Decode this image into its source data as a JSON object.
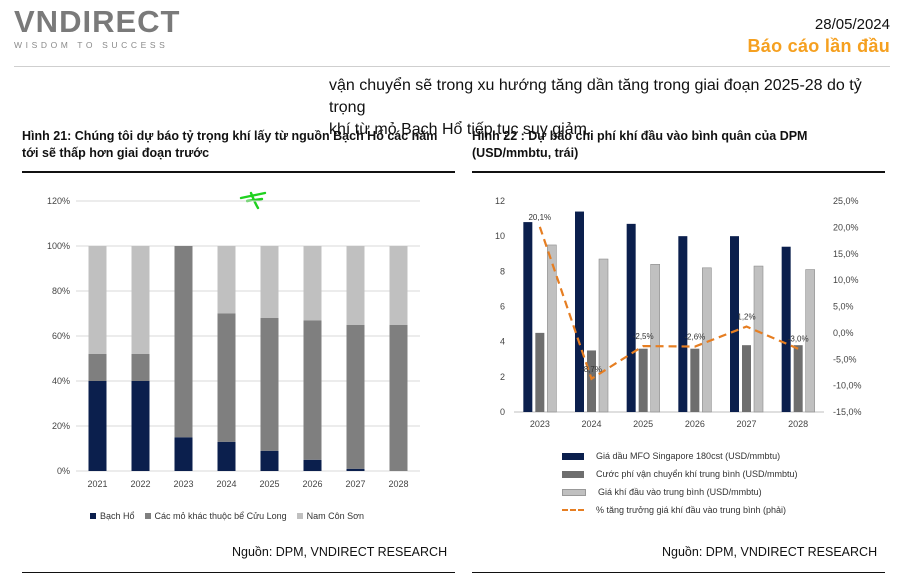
{
  "header": {
    "brand": "VNDIRECT",
    "tagline": "WISDOM TO SUCCESS",
    "date": "28/05/2024",
    "report_type": "Báo cáo lần đầu"
  },
  "body_text": {
    "line1": "vận chuyển sẽ trong xu hướng tăng dần tăng trong giai đoạn 2025-28 do tỷ trọng",
    "line2": "khí từ mỏ Bạch Hổ tiếp tục suy giảm."
  },
  "figure21": {
    "title_line1": "Hình 21: Chúng tôi dự báo tỷ trọng khí lấy từ nguồn Bạch Hổ các năm",
    "title_line2": "tới sẽ thấp hơn giai đoạn trước",
    "source": "Nguồn: DPM, VNDIRECT RESEARCH"
  },
  "figure22": {
    "title_line1": "Hình 22 : Dự báo chi phí khí đầu vào bình quân của DPM",
    "title_line2": "(USD/mmbtu, trái)",
    "source": "Nguồn: DPM, VNDIRECT RESEARCH"
  },
  "chart_data": [
    {
      "type": "bar",
      "stacked": true,
      "title": "Hình 21: Chúng tôi dự báo tỷ trọng khí lấy từ nguồn Bạch Hổ các năm tới sẽ thấp hơn giai đoạn trước",
      "categories": [
        "2021",
        "2022",
        "2023",
        "2024",
        "2025",
        "2026",
        "2027",
        "2028"
      ],
      "ylim": [
        0,
        120
      ],
      "yticks": [
        "0%",
        "20%",
        "40%",
        "60%",
        "80%",
        "100%",
        "120%"
      ],
      "series": [
        {
          "name": "Bạch Hổ",
          "color": "#0b1f4d",
          "values": [
            40,
            40,
            15,
            13,
            9,
            5,
            1,
            0
          ]
        },
        {
          "name": "Các mỏ khác thuộc bể Cửu Long",
          "color": "#7f7f7f",
          "values": [
            12,
            12,
            85,
            57,
            59,
            62,
            64,
            65
          ]
        },
        {
          "name": "Nam Côn Sơn",
          "color": "#c0c0c0",
          "values": [
            48,
            48,
            0,
            30,
            32,
            33,
            35,
            35
          ]
        }
      ],
      "legend_position": "bottom"
    },
    {
      "type": "bar",
      "title": "Hình 22 : Dự báo chi phí khí đầu vào bình quân của DPM (USD/mmbtu, trái)",
      "categories": [
        "2023",
        "2024",
        "2025",
        "2026",
        "2027",
        "2028"
      ],
      "ylim_left": [
        0,
        12
      ],
      "yticks_left": [
        "0",
        "2",
        "4",
        "6",
        "8",
        "10",
        "12"
      ],
      "ylim_right": [
        -15,
        25
      ],
      "yticks_right": [
        "-15,0%",
        "-10,0%",
        "-5,0%",
        "0,0%",
        "5,0%",
        "10,0%",
        "15,0%",
        "20,0%",
        "25,0%"
      ],
      "series": [
        {
          "name": "Giá dầu MFO Singapore 180cst (USD/mmbtu)",
          "color": "#0b1f4d",
          "values": [
            10.8,
            11.4,
            10.7,
            10.0,
            10.0,
            9.4
          ]
        },
        {
          "name": "Cước phí vận chuyển khí trung bình  (USD/mmbtu)",
          "color": "#6e6e6e",
          "values": [
            4.5,
            3.5,
            3.6,
            3.6,
            3.8,
            3.8
          ]
        },
        {
          "name": "Giá khí đầu vào trung bình (USD/mmbtu)",
          "color": "#c0c0c0",
          "values": [
            9.5,
            8.7,
            8.4,
            8.2,
            8.3,
            8.1
          ]
        }
      ],
      "line_series": {
        "name": "% tăng trưởng giá khí đầu vào trung bình (phải)",
        "color": "#e67e22",
        "values": [
          20.1,
          -8.7,
          -2.5,
          -2.6,
          1.2,
          -3.0
        ],
        "labels": [
          "20,1%",
          "-8,7%",
          "-2,5%",
          "-2,6%",
          "1,2%",
          "-3,0%"
        ]
      },
      "legend_position": "bottom"
    }
  ]
}
